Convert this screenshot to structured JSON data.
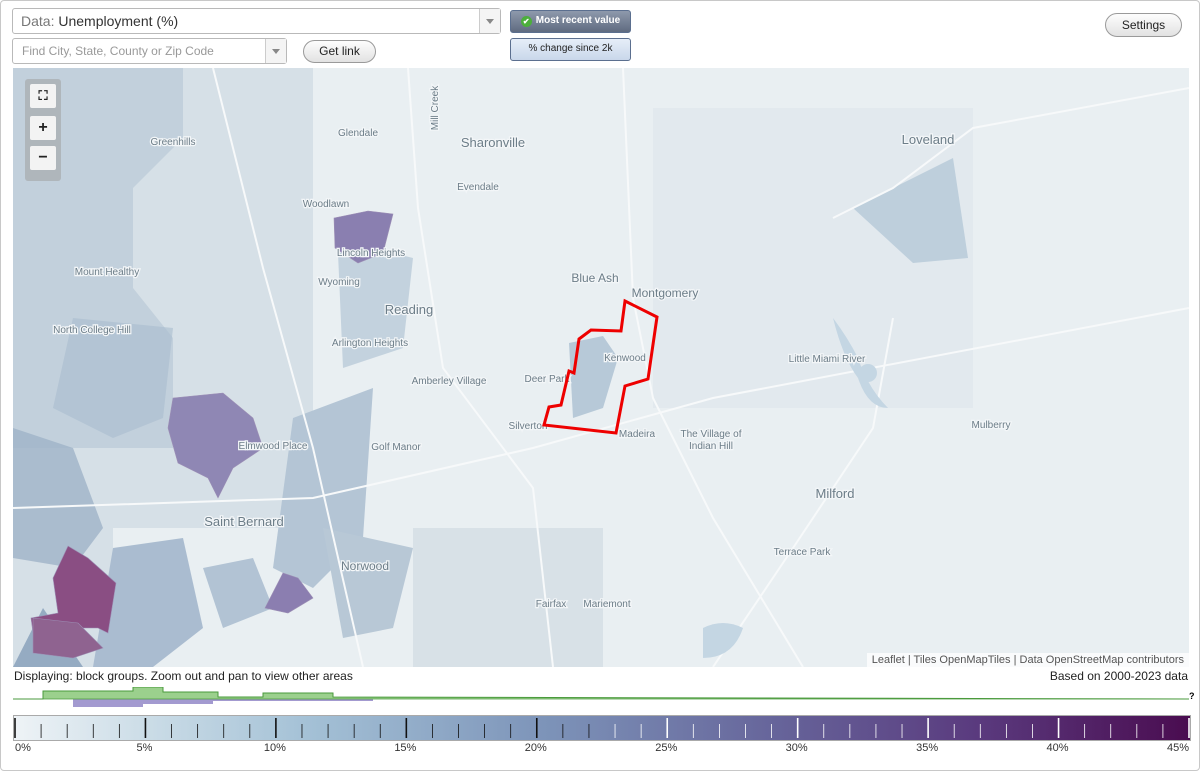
{
  "controls": {
    "data_label": "Data:",
    "data_value": "Unemployment (%)",
    "search_placeholder": "Find City, State, County or Zip Code",
    "get_link": "Get link",
    "most_recent": "Most recent value",
    "percent_change": "% change since 2k",
    "settings": "Settings",
    "zoom_in": "+",
    "zoom_out": "−"
  },
  "map": {
    "places": [
      "Mill Creek",
      "Glendale",
      "Sharonville",
      "Greenhills",
      "Evendale",
      "Loveland",
      "Woodlawn",
      "Lincoln Heights",
      "Mount Healthy",
      "Wyoming",
      "Blue Ash",
      "Montgomery",
      "North College Hill",
      "Reading",
      "Arlington Heights",
      "Kenwood",
      "Amberley Village",
      "Deer Park",
      "Little Miami River",
      "Silverton",
      "Madeira",
      "The Village of",
      "Indian Hill",
      "Mulberry",
      "Golf Manor",
      "Elmwood Place",
      "Milford",
      "Saint Bernard",
      "Norwood",
      "Terrace Park",
      "Fairfax",
      "Mariemont"
    ],
    "attribution": "Leaflet | Tiles OpenMapTiles | Data OpenStreetMap contributors"
  },
  "status": {
    "displaying": "Displaying: block groups. Zoom out and pan to view other areas",
    "based_on": "Based on 2000-2023 data",
    "help": "?"
  },
  "legend": {
    "ticks": [
      "0%",
      "5%",
      "10%",
      "15%",
      "20%",
      "25%",
      "30%",
      "35%",
      "40%",
      "45%"
    ]
  }
}
